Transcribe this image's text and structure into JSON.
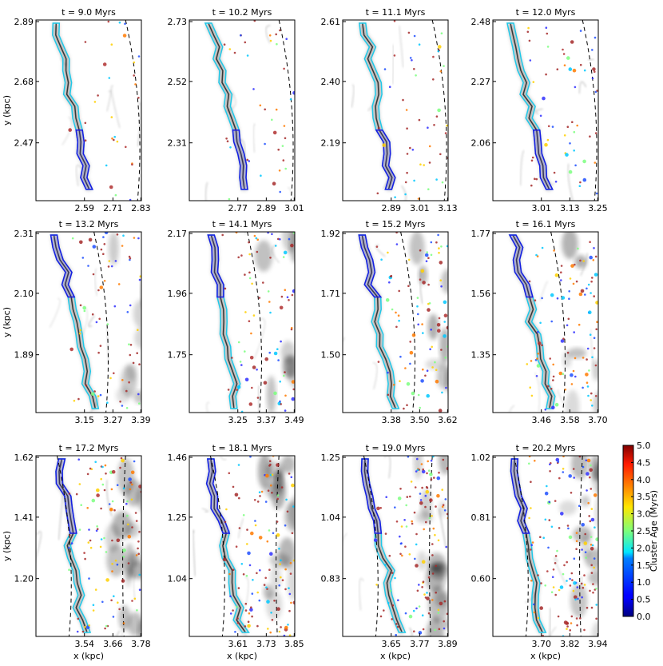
{
  "chart_data": {
    "type": "scatter",
    "xlabel": "x (kpc)",
    "ylabel": "y (kpc)",
    "colorbar": {
      "label": "Cluster Age (Myrs)",
      "min": 0.0,
      "max": 5.0,
      "ticks": [
        "0.0",
        "0.5",
        "1.0",
        "1.5",
        "2.0",
        "2.5",
        "3.0",
        "3.5",
        "4.0",
        "4.5",
        "5.0"
      ],
      "colormap": "jet"
    },
    "panels": [
      {
        "title": "t = 9.0 Myrs",
        "xticks": [
          "2.59",
          "2.71",
          "2.83"
        ],
        "yticks": [
          "2.47",
          "2.68",
          "2.89"
        ]
      },
      {
        "title": "t = 10.2 Myrs",
        "xticks": [
          "2.77",
          "2.89",
          "3.01"
        ],
        "yticks": [
          "2.31",
          "2.52",
          "2.73"
        ]
      },
      {
        "title": "t = 11.1 Myrs",
        "xticks": [
          "2.89",
          "3.01",
          "3.13"
        ],
        "yticks": [
          "2.19",
          "2.40",
          "2.61"
        ]
      },
      {
        "title": "t = 12.0 Myrs",
        "xticks": [
          "3.01",
          "3.13",
          "3.25"
        ],
        "yticks": [
          "2.06",
          "2.27",
          "2.48"
        ]
      },
      {
        "title": "t = 13.2 Myrs",
        "xticks": [
          "3.15",
          "3.27",
          "3.39"
        ],
        "yticks": [
          "1.89",
          "2.10",
          "2.31"
        ]
      },
      {
        "title": "t = 14.1 Myrs",
        "xticks": [
          "3.25",
          "3.37",
          "3.49"
        ],
        "yticks": [
          "1.75",
          "1.96",
          "2.17"
        ]
      },
      {
        "title": "t = 15.2 Myrs",
        "xticks": [
          "3.38",
          "3.50",
          "3.62"
        ],
        "yticks": [
          "1.50",
          "1.71",
          "1.92"
        ]
      },
      {
        "title": "t = 16.1 Myrs",
        "xticks": [
          "3.46",
          "3.58",
          "3.70"
        ],
        "yticks": [
          "1.35",
          "1.56",
          "1.77"
        ]
      },
      {
        "title": "t = 17.2 Myrs",
        "xticks": [
          "3.54",
          "3.66",
          "3.78"
        ],
        "yticks": [
          "1.20",
          "1.41",
          "1.62"
        ]
      },
      {
        "title": "t = 18.1 Myrs",
        "xticks": [
          "3.61",
          "3.73",
          "3.85"
        ],
        "yticks": [
          "1.04",
          "1.25",
          "1.46"
        ]
      },
      {
        "title": "t = 19.0 Myrs",
        "xticks": [
          "3.65",
          "3.77",
          "3.89"
        ],
        "yticks": [
          "0.83",
          "1.04",
          "1.25"
        ]
      },
      {
        "title": "t = 20.2 Myrs",
        "xticks": [
          "3.70",
          "3.82",
          "3.94"
        ],
        "yticks": [
          "0.60",
          "0.81",
          "1.02"
        ]
      }
    ]
  }
}
